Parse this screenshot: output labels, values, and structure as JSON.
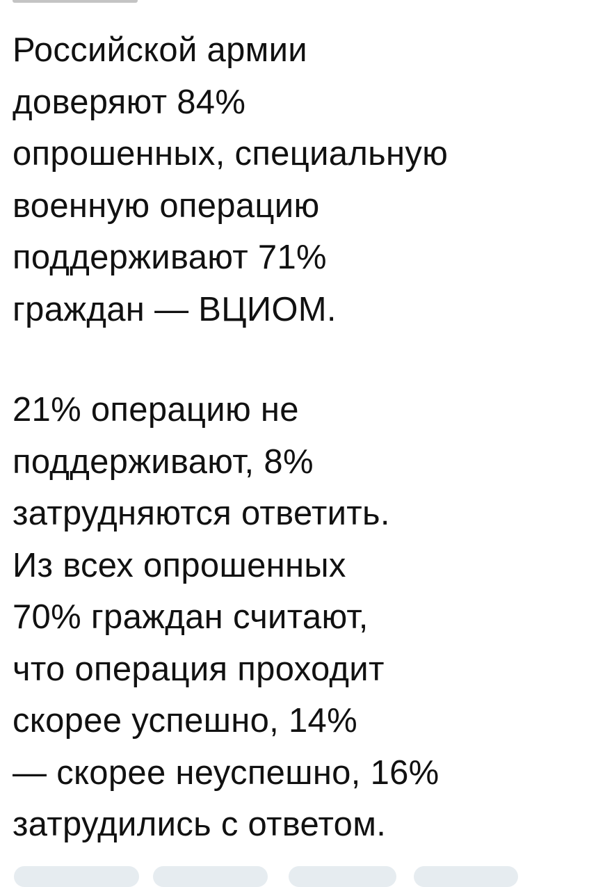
{
  "post": {
    "paragraphs": [
      [
        "Российской армии",
        "доверяют 84%",
        "опрошенных, специальную",
        "военную операцию",
        "поддерживают 71%",
        "граждан — ВЦИОМ."
      ],
      [
        "21% операцию не",
        "поддерживают, 8%",
        "затрудняются ответить.",
        "Из всех опрошенных",
        "70% граждан считают,",
        "что операция проходит",
        "скорее успешно, 14%",
        "— скорее неуспешно, 16%",
        "затрудились с ответом."
      ]
    ]
  }
}
